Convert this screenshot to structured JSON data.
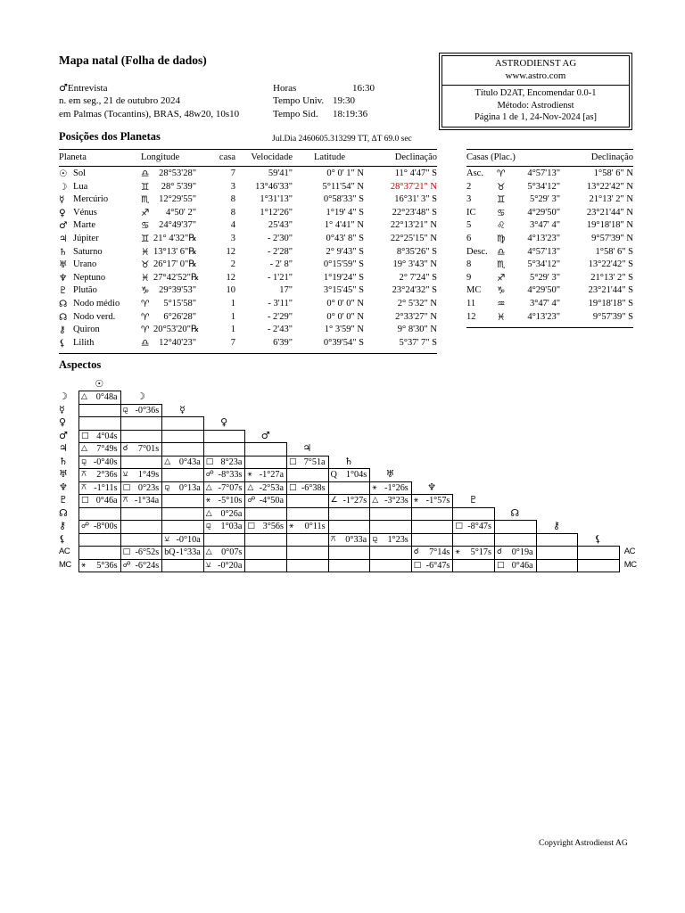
{
  "page": {
    "title": "Mapa natal (Folha de dados)",
    "copyright": "Copyright Astrodienst AG"
  },
  "header": {
    "gender_glyph": "♂",
    "name": "Entrevista",
    "birth_line": "n. em seg., 21 de outubro 2024",
    "place_line": "em Palmas (Tocantins), BRAS, 48w20, 10s10",
    "times": [
      {
        "label": "Horas",
        "value": "16:30"
      },
      {
        "label": "Tempo Univ.",
        "value": "19:30"
      },
      {
        "label": "Tempo Sid.",
        "value": "18:19:36"
      }
    ],
    "provider_box": {
      "line1": "ASTRODIENST AG",
      "line2": "www.astro.com",
      "line3": "Título D2AT, Encomendar 0.0-1",
      "line4": "Método: Astrodienst",
      "line5": "Página 1 de 1, 24-Nov-2024 [as]"
    }
  },
  "positions": {
    "heading": "Posições dos Planetas",
    "julian_note": "Jul.Dia  2460605.313299 TT,   ΔT  69.0 sec",
    "columns": [
      "Planeta",
      "Longitude",
      "casa",
      "Velocidade",
      "Latitude",
      "Declinação"
    ],
    "rows": [
      {
        "id": "sol",
        "glyph": "☉",
        "name": "Sol",
        "sign": "♎",
        "lon": "28°53'28\"",
        "house": "7",
        "speed": "59'41\"",
        "lat": "0° 0' 1\" N",
        "dec": "11° 4'47\" S",
        "red": false
      },
      {
        "id": "lua",
        "glyph": "☽",
        "name": "Lua",
        "sign": "♊",
        "lon": "28° 5'39\"",
        "house": "3",
        "speed": "13°46'33\"",
        "lat": "5°11'54\" N",
        "dec": "28°37'21\" N",
        "red": true
      },
      {
        "id": "mercurio",
        "glyph": "☿",
        "name": "Mercúrio",
        "sign": "♏",
        "lon": "12°29'55\"",
        "house": "8",
        "speed": "1°31'13\"",
        "lat": "0°58'33\" S",
        "dec": "16°31' 3\" S",
        "red": false
      },
      {
        "id": "venus",
        "glyph": "♀",
        "name": "Vénus",
        "sign": "♐",
        "lon": "4°50' 2\"",
        "house": "8",
        "speed": "1°12'26\"",
        "lat": "1°19' 4\" S",
        "dec": "22°23'48\" S",
        "red": false
      },
      {
        "id": "marte",
        "glyph": "♂",
        "name": "Marte",
        "sign": "♋",
        "lon": "24°49'37\"",
        "house": "4",
        "speed": "25'43\"",
        "lat": "1° 4'41\" N",
        "dec": "22°13'21\" N",
        "red": false
      },
      {
        "id": "jupiter",
        "glyph": "♃",
        "name": "Júpiter",
        "sign": "♊",
        "lon": "21° 4'32\"℞",
        "house": "3",
        "speed": "- 2'30\"",
        "lat": "0°43' 8\" S",
        "dec": "22°25'15\" N",
        "red": false
      },
      {
        "id": "saturno",
        "glyph": "♄",
        "name": "Saturno",
        "sign": "♓",
        "lon": "13°13' 6\"℞",
        "house": "12",
        "speed": "- 2'28\"",
        "lat": "2° 9'43\" S",
        "dec": "8°35'26\" S",
        "red": false
      },
      {
        "id": "urano",
        "glyph": "♅",
        "name": "Urano",
        "sign": "♉",
        "lon": "26°17' 0\"℞",
        "house": "2",
        "speed": "- 2' 8\"",
        "lat": "0°15'59\" S",
        "dec": "19° 3'43\" N",
        "red": false
      },
      {
        "id": "neptuno",
        "glyph": "♆",
        "name": "Neptuno",
        "sign": "♓",
        "lon": "27°42'52\"℞",
        "house": "12",
        "speed": "- 1'21\"",
        "lat": "1°19'24\" S",
        "dec": "2° 7'24\" S",
        "red": false
      },
      {
        "id": "plutao",
        "glyph": "♇",
        "name": "Plutão",
        "sign": "♑",
        "lon": "29°39'53\"",
        "house": "10",
        "speed": "17\"",
        "lat": "3°15'45\" S",
        "dec": "23°24'32\" S",
        "red": false
      },
      {
        "id": "nodo-medio",
        "glyph": "☊",
        "name": "Nodo médio",
        "sign": "♈",
        "lon": "5°15'58\"",
        "house": "1",
        "speed": "- 3'11\"",
        "lat": "0° 0' 0\" N",
        "dec": "2° 5'32\" N",
        "red": false
      },
      {
        "id": "nodo-verd",
        "glyph": "☊",
        "name": "Nodo verd.",
        "sign": "♈",
        "lon": "6°26'28\"",
        "house": "1",
        "speed": "- 2'29\"",
        "lat": "0° 0' 0\" N",
        "dec": "2°33'27\" N",
        "red": false
      },
      {
        "id": "quiron",
        "glyph": "⚷",
        "name": "Quiron",
        "sign": "♈",
        "lon": "20°53'20\"℞",
        "house": "1",
        "speed": "- 2'43\"",
        "lat": "1° 3'59\" N",
        "dec": "9° 8'30\" N",
        "red": false
      },
      {
        "id": "lilith",
        "glyph": "⚸",
        "name": "Lilith",
        "sign": "♎",
        "lon": "12°40'23\"",
        "house": "7",
        "speed": "6'39\"",
        "lat": "0°39'54\" S",
        "dec": "5°37' 7\" S",
        "red": false
      }
    ]
  },
  "houses": {
    "heading": "Casas (Plac.)",
    "dec_heading": "Declinação",
    "rows": [
      {
        "id": "asc",
        "label": "Asc.",
        "sign": "♈",
        "lon": "4°57'13\"",
        "dec": "1°58' 6\" N"
      },
      {
        "id": "2",
        "label": "2",
        "sign": "♉",
        "lon": "5°34'12\"",
        "dec": "13°22'42\" N"
      },
      {
        "id": "3",
        "label": "3",
        "sign": "♊",
        "lon": "5°29' 3\"",
        "dec": "21°13' 2\" N"
      },
      {
        "id": "ic",
        "label": "IC",
        "sign": "♋",
        "lon": "4°29'50\"",
        "dec": "23°21'44\" N"
      },
      {
        "id": "5",
        "label": "5",
        "sign": "♌",
        "lon": "3°47' 4\"",
        "dec": "19°18'18\" N"
      },
      {
        "id": "6",
        "label": "6",
        "sign": "♍",
        "lon": "4°13'23\"",
        "dec": "9°57'39\" N"
      },
      {
        "id": "desc",
        "label": "Desc.",
        "sign": "♎",
        "lon": "4°57'13\"",
        "dec": "1°58' 6\" S"
      },
      {
        "id": "8",
        "label": "8",
        "sign": "♏",
        "lon": "5°34'12\"",
        "dec": "13°22'42\" S"
      },
      {
        "id": "9",
        "label": "9",
        "sign": "♐",
        "lon": "5°29' 3\"",
        "dec": "21°13' 2\" S"
      },
      {
        "id": "mc",
        "label": "MC",
        "sign": "♑",
        "lon": "4°29'50\"",
        "dec": "23°21'44\" S"
      },
      {
        "id": "11",
        "label": "11",
        "sign": "♒",
        "lon": "3°47' 4\"",
        "dec": "19°18'18\" S"
      },
      {
        "id": "12",
        "label": "12",
        "sign": "♓",
        "lon": "4°13'23\"",
        "dec": "9°57'39\" S"
      }
    ]
  },
  "aspects": {
    "heading": "Aspectos",
    "planets": [
      "☉",
      "☽",
      "☿",
      "♀",
      "♂",
      "♃",
      "♄",
      "♅",
      "♆",
      "♇",
      "☊",
      "⚷",
      "⚸"
    ],
    "planet_names": [
      "sun",
      "moon",
      "mercury",
      "venus",
      "mars",
      "jupiter",
      "saturn",
      "uranus",
      "neptune",
      "pluto",
      "node",
      "chiron",
      "lilith"
    ],
    "rows": [
      {
        "label": "☽",
        "name": "moon",
        "n": 1,
        "cells": [
          {
            "c": 0,
            "g": "△",
            "t": "trine",
            "v": "0°48a"
          }
        ]
      },
      {
        "label": "☿",
        "name": "mercury",
        "n": 2,
        "cells": [
          {
            "c": 1,
            "g": "⚼",
            "t": "sesquiquadrate",
            "v": "-0°36s"
          }
        ]
      },
      {
        "label": "♀",
        "name": "venus",
        "n": 3,
        "cells": []
      },
      {
        "label": "♂",
        "name": "mars",
        "n": 4,
        "cells": [
          {
            "c": 0,
            "g": "□",
            "t": "square",
            "v": "4°04s"
          }
        ]
      },
      {
        "label": "♃",
        "name": "jupiter",
        "n": 5,
        "cells": [
          {
            "c": 0,
            "g": "△",
            "t": "trine",
            "v": "7°49s"
          },
          {
            "c": 1,
            "g": "☌",
            "t": "conjunction",
            "v": "7°01s"
          }
        ]
      },
      {
        "label": "♄",
        "name": "saturn",
        "n": 6,
        "cells": [
          {
            "c": 0,
            "g": "⚼",
            "t": "sesquiquadrate",
            "v": "-0°40s"
          },
          {
            "c": 2,
            "g": "△",
            "t": "trine",
            "v": "0°43a"
          },
          {
            "c": 3,
            "g": "□",
            "t": "square",
            "v": "8°23a"
          },
          {
            "c": 5,
            "g": "□",
            "t": "square",
            "v": "7°51a"
          }
        ]
      },
      {
        "label": "♅",
        "name": "uranus",
        "n": 7,
        "cells": [
          {
            "c": 0,
            "g": "⚻",
            "t": "quincunx",
            "v": "2°36s"
          },
          {
            "c": 1,
            "g": "⚺",
            "t": "semisextile",
            "v": "1°49s"
          },
          {
            "c": 3,
            "g": "☍",
            "t": "opposition",
            "v": "-8°33s"
          },
          {
            "c": 4,
            "g": "⚹",
            "t": "sextile",
            "v": "-1°27a"
          },
          {
            "c": 6,
            "g": "Q",
            "t": "quintile",
            "v": "1°04s"
          }
        ]
      },
      {
        "label": "♆",
        "name": "neptune",
        "n": 8,
        "cells": [
          {
            "c": 0,
            "g": "⚻",
            "t": "quincunx",
            "v": "-1°11s"
          },
          {
            "c": 1,
            "g": "□",
            "t": "square",
            "v": "0°23s"
          },
          {
            "c": 2,
            "g": "⚼",
            "t": "sesquiquadrate",
            "v": "0°13a"
          },
          {
            "c": 3,
            "g": "△",
            "t": "trine",
            "v": "-7°07s"
          },
          {
            "c": 4,
            "g": "△",
            "t": "trine",
            "v": "-2°53a"
          },
          {
            "c": 5,
            "g": "□",
            "t": "square",
            "v": "-6°38s"
          },
          {
            "c": 7,
            "g": "⚹",
            "t": "sextile",
            "v": "-1°26s"
          }
        ]
      },
      {
        "label": "♇",
        "name": "pluto",
        "n": 9,
        "cells": [
          {
            "c": 0,
            "g": "□",
            "t": "square",
            "v": "0°46a"
          },
          {
            "c": 1,
            "g": "⚻",
            "t": "quincunx",
            "v": "-1°34a"
          },
          {
            "c": 3,
            "g": "⚹",
            "t": "sextile",
            "v": "-5°10s"
          },
          {
            "c": 4,
            "g": "☍",
            "t": "opposition",
            "v": "-4°50a"
          },
          {
            "c": 6,
            "g": "∠",
            "t": "semisquare",
            "v": "-1°27s"
          },
          {
            "c": 7,
            "g": "△",
            "t": "trine",
            "v": "-3°23s"
          },
          {
            "c": 8,
            "g": "⚹",
            "t": "sextile",
            "v": "-1°57s"
          }
        ]
      },
      {
        "label": "☊",
        "name": "node",
        "n": 10,
        "cells": [
          {
            "c": 3,
            "g": "△",
            "t": "trine",
            "v": "0°26a"
          }
        ]
      },
      {
        "label": "⚷",
        "name": "chiron",
        "n": 11,
        "cells": [
          {
            "c": 0,
            "g": "☍",
            "t": "opposition",
            "v": "-8°00s"
          },
          {
            "c": 3,
            "g": "⚼",
            "t": "sesquiquadrate",
            "v": "1°03a"
          },
          {
            "c": 4,
            "g": "□",
            "t": "square",
            "v": "3°56s"
          },
          {
            "c": 5,
            "g": "⚹",
            "t": "sextile",
            "v": "0°11s"
          },
          {
            "c": 9,
            "g": "□",
            "t": "square",
            "v": "-8°47s"
          }
        ]
      },
      {
        "label": "⚸",
        "name": "lilith",
        "n": 12,
        "cells": [
          {
            "c": 2,
            "g": "⚺",
            "t": "semisextile",
            "v": "-0°10a"
          },
          {
            "c": 6,
            "g": "⚻",
            "t": "quincunx",
            "v": "0°33a"
          },
          {
            "c": 7,
            "g": "⚼",
            "t": "sesquiquadrate",
            "v": "1°23s"
          }
        ]
      },
      {
        "label": "AC",
        "name": "ac",
        "n": 13,
        "cells": [
          {
            "c": 1,
            "g": "□",
            "t": "square",
            "v": "-6°52s"
          },
          {
            "c": 2,
            "g": "bQ",
            "t": "biquintile",
            "v": "-1°33a"
          },
          {
            "c": 3,
            "g": "△",
            "t": "trine",
            "v": "0°07s"
          },
          {
            "c": 8,
            "g": "☌",
            "t": "conjunction",
            "v": "7°14s"
          },
          {
            "c": 9,
            "g": "⚹",
            "t": "sextile",
            "v": "5°17s"
          },
          {
            "c": 10,
            "g": "☌",
            "t": "conjunction",
            "v": "0°19a"
          }
        ]
      },
      {
        "label": "MC",
        "name": "mc",
        "n": 13,
        "cells": [
          {
            "c": 0,
            "g": "⚹",
            "t": "sextile",
            "v": "5°36s"
          },
          {
            "c": 1,
            "g": "☍",
            "t": "opposition",
            "v": "-6°24s"
          },
          {
            "c": 3,
            "g": "⚺",
            "t": "semisextile",
            "v": "-0°20a"
          },
          {
            "c": 8,
            "g": "□",
            "t": "square",
            "v": "-6°47s"
          },
          {
            "c": 10,
            "g": "□",
            "t": "square",
            "v": "0°46a"
          }
        ]
      }
    ]
  }
}
